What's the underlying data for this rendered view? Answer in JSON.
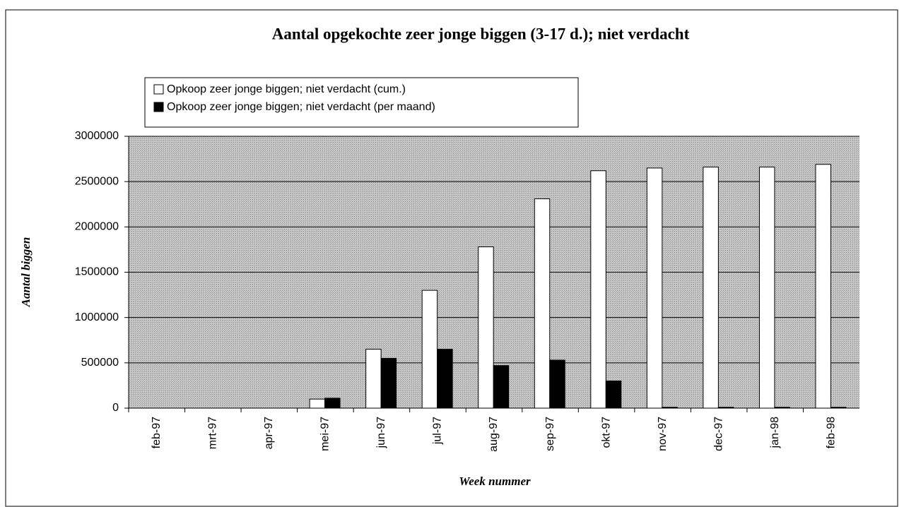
{
  "chart_data": {
    "type": "bar",
    "title": "Aantal opgekochte zeer jonge biggen (3-17 d.); niet verdacht",
    "x_label": "Week nummer",
    "y_label": "Aantal biggen",
    "categories": [
      "feb-97",
      "mrt-97",
      "apr-97",
      "mei-97",
      "jun-97",
      "jul-97",
      "aug-97",
      "sep-97",
      "okt-97",
      "nov-97",
      "dec-97",
      "jan-98",
      "feb-98"
    ],
    "series": [
      {
        "name": "Opkoop zeer jonge biggen; niet verdacht (cum.)",
        "color": "#ffffff",
        "values": [
          0,
          0,
          0,
          100000,
          650000,
          1300000,
          1780000,
          2310000,
          2620000,
          2650000,
          2660000,
          2660000,
          2690000
        ]
      },
      {
        "name": "Opkoop zeer jonge biggen; niet verdacht (per maand)",
        "color": "#000000",
        "values": [
          0,
          0,
          0,
          110000,
          550000,
          650000,
          470000,
          530000,
          300000,
          10000,
          10000,
          10000,
          10000
        ]
      }
    ],
    "ylim": [
      0,
      3000000
    ],
    "yticks": [
      0,
      500000,
      1000000,
      1500000,
      2000000,
      2500000,
      3000000
    ],
    "grid": true
  }
}
